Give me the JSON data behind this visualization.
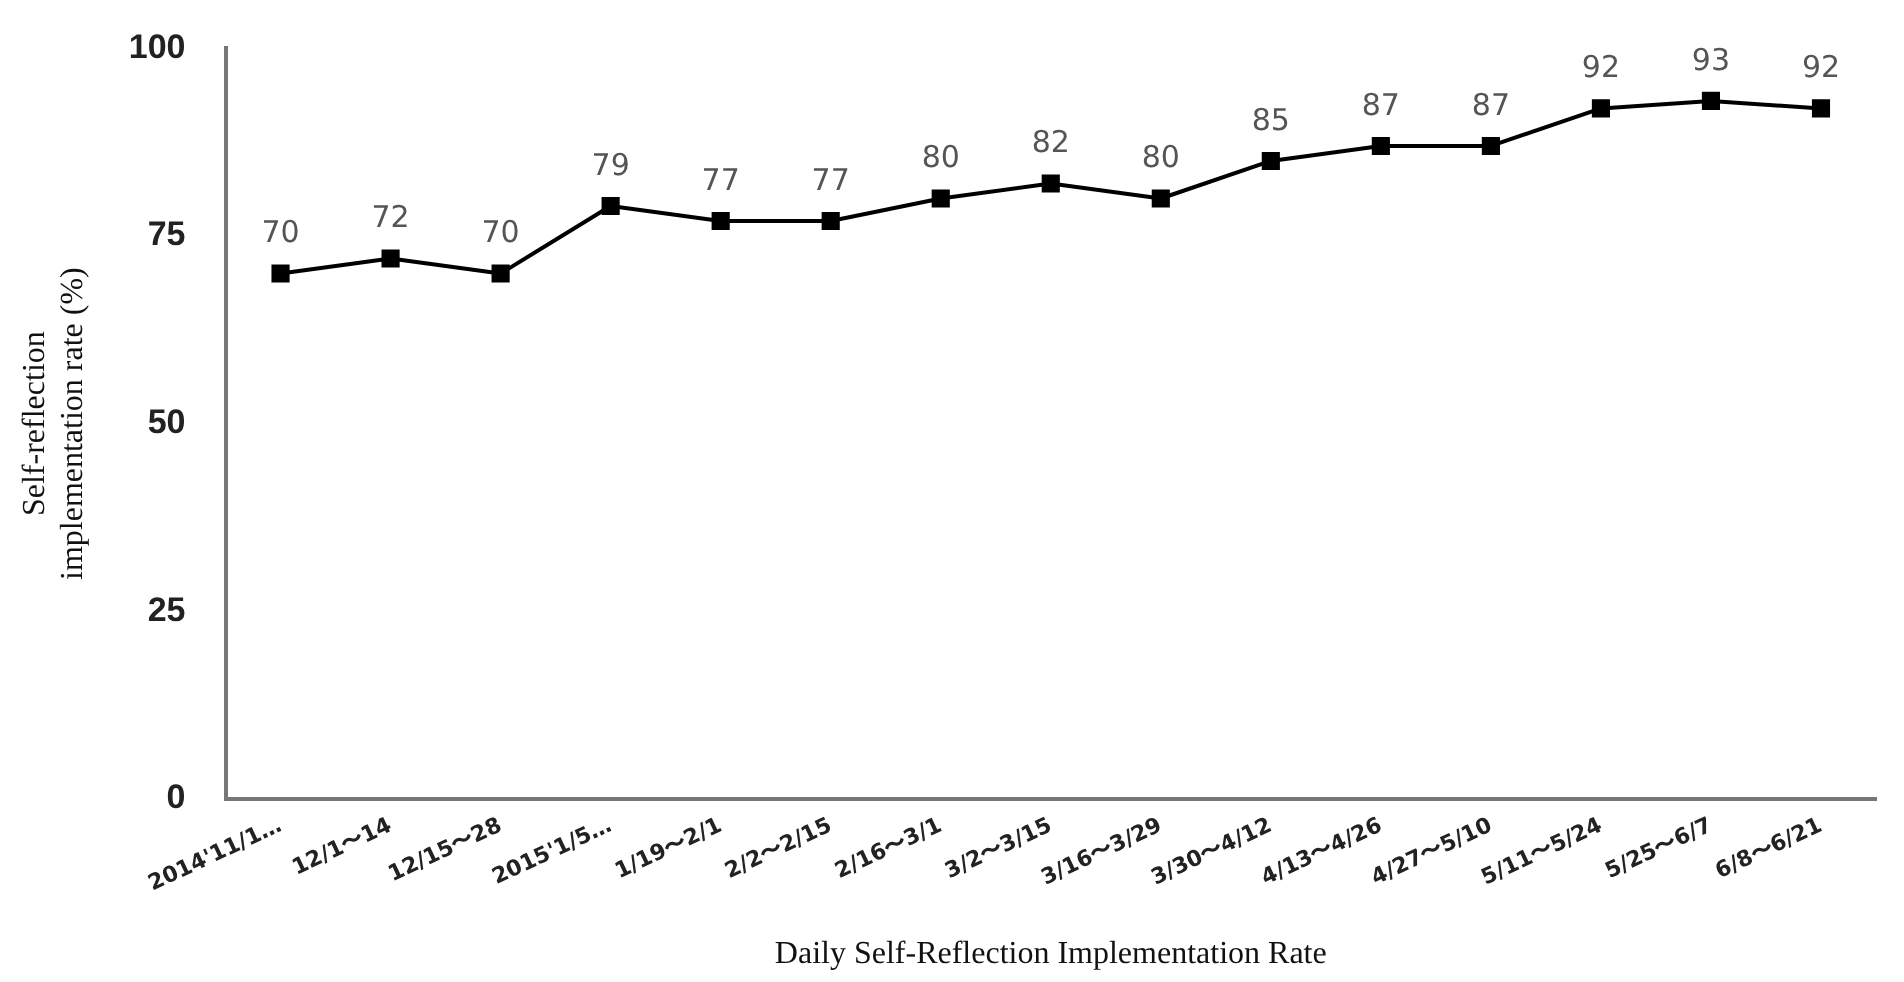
{
  "chart_data": {
    "type": "line",
    "xlabel": "Daily Self-Reflection Implementation Rate",
    "ylabel": "Self-reflection implementation rate (%)",
    "categories": [
      "2014'11/1…",
      "12/1〜14",
      "12/15〜28",
      "2015'1/5…",
      "1/19〜2/1",
      "2/2〜2/15",
      "2/16〜3/1",
      "3/2〜3/15",
      "3/16〜3/29",
      "3/30〜4/12",
      "4/13〜4/26",
      "4/27〜5/10",
      "5/11〜5/24",
      "5/25〜6/7",
      "6/8〜6/21"
    ],
    "series": [
      {
        "color": "#000000",
        "values": [
          70,
          72,
          70,
          79,
          77,
          77,
          80,
          82,
          80,
          85,
          87,
          87,
          92,
          93,
          92
        ]
      }
    ],
    "ylim": [
      0,
      100
    ],
    "yticks": [
      0,
      25,
      50,
      75,
      100
    ],
    "grid": false,
    "legend": false,
    "marker": "square",
    "line_style": "solid",
    "data_labels": true
  }
}
